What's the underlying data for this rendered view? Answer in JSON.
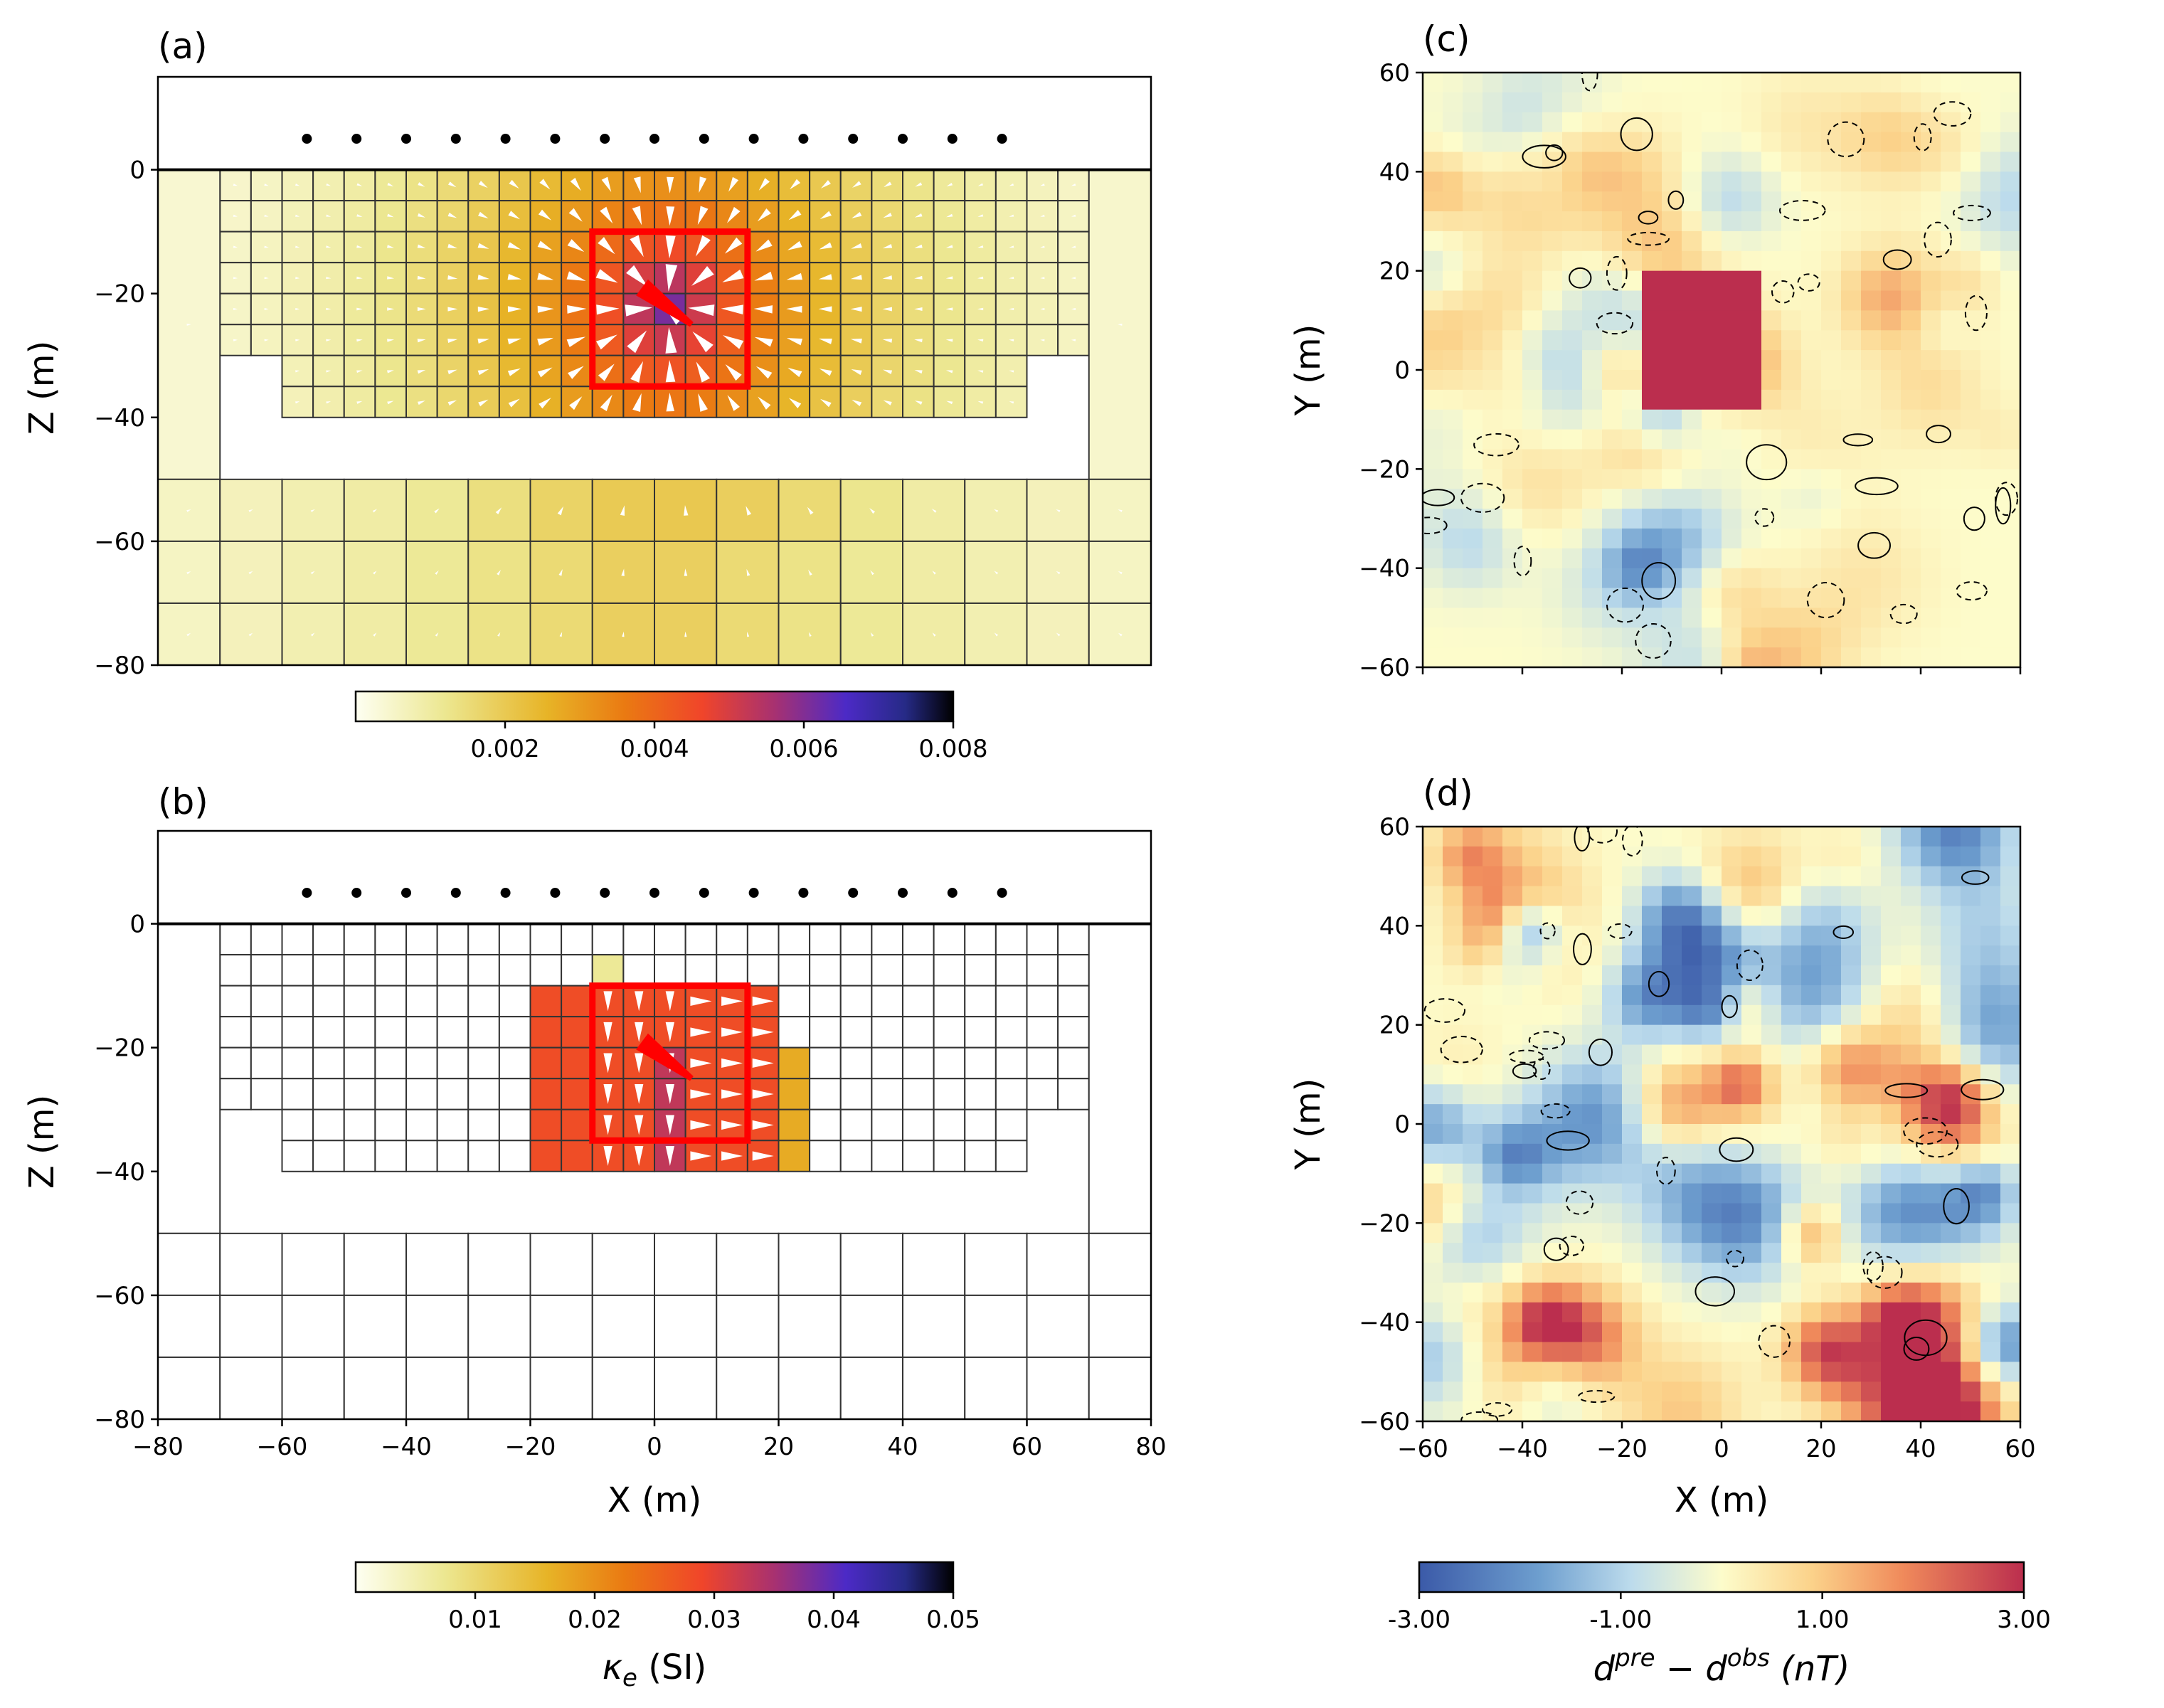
{
  "panels": {
    "a": "(a)",
    "b": "(b)",
    "c": "(c)",
    "d": "(d)"
  },
  "chart_data": [
    {
      "id": "a",
      "type": "heatmap",
      "title": "(a)",
      "xlabel": "",
      "ylabel": "Z (m)",
      "xlim": [
        -80,
        80
      ],
      "ylim": [
        -80,
        15
      ],
      "yticks": [
        0,
        -20,
        -40,
        -60,
        -80
      ],
      "yticklabels": [
        "0",
        "−20",
        "−40",
        "−60",
        "−80"
      ],
      "stations_x": [
        -56,
        -48,
        -40,
        -32,
        -24,
        -16,
        -8,
        0,
        8,
        16,
        24,
        32,
        40,
        48,
        56
      ],
      "stations_z": 5,
      "target_box": {
        "x": [
          -10,
          15
        ],
        "z": [
          -35,
          -10
        ]
      },
      "dipole": {
        "x0": 6,
        "z0": -25,
        "x1": -2,
        "z1": -19
      },
      "colorbar": {
        "range": [
          0,
          0.008
        ],
        "ticks": [
          0.002,
          0.004,
          0.006,
          0.008
        ],
        "ticklabels": [
          "0.002",
          "0.004",
          "0.006",
          "0.008"
        ]
      },
      "value_units": "kappa_e (SI)"
    },
    {
      "id": "b",
      "type": "heatmap",
      "title": "(b)",
      "xlabel": "X (m)",
      "ylabel": "Z (m)",
      "xlim": [
        -80,
        80
      ],
      "ylim": [
        -80,
        15
      ],
      "xticks": [
        -80,
        -60,
        -40,
        -20,
        0,
        20,
        40,
        60,
        80
      ],
      "xticklabels": [
        "−80",
        "−60",
        "−40",
        "−20",
        "0",
        "20",
        "40",
        "60",
        "80"
      ],
      "yticks": [
        0,
        -20,
        -40,
        -60,
        -80
      ],
      "yticklabels": [
        "0",
        "−20",
        "−40",
        "−60",
        "−80"
      ],
      "stations_x": [
        -56,
        -48,
        -40,
        -32,
        -24,
        -16,
        -8,
        0,
        8,
        16,
        24,
        32,
        40,
        48,
        56
      ],
      "stations_z": 5,
      "target_box": {
        "x": [
          -10,
          15
        ],
        "z": [
          -35,
          -10
        ]
      },
      "dipole": {
        "x0": 6,
        "z0": -25,
        "x1": -2,
        "z1": -19
      },
      "colorbar": {
        "range": [
          0,
          0.05
        ],
        "ticks": [
          0.01,
          0.02,
          0.03,
          0.04,
          0.05
        ],
        "ticklabels": [
          "0.01",
          "0.02",
          "0.03",
          "0.04",
          "0.05"
        ],
        "label": "κ",
        "label_sub": "e",
        "label_rest": " (SI)"
      }
    },
    {
      "id": "c",
      "type": "heatmap",
      "title": "(c)",
      "xlabel": "",
      "ylabel": "Y (m)",
      "xlim": [
        -60,
        60
      ],
      "ylim": [
        -60,
        60
      ],
      "yticks": [
        60,
        40,
        20,
        0,
        -20,
        -40,
        -60
      ],
      "yticklabels": [
        "60",
        "40",
        "20",
        "0",
        "−20",
        "−40",
        "−60"
      ],
      "anomaly": {
        "x": [
          -18,
          10
        ],
        "y": [
          -10,
          20
        ],
        "value": 3.0
      }
    },
    {
      "id": "d",
      "type": "heatmap",
      "title": "(d)",
      "xlabel": "X (m)",
      "ylabel": "Y (m)",
      "xlim": [
        -60,
        60
      ],
      "ylim": [
        -60,
        60
      ],
      "xticks": [
        -60,
        -40,
        -20,
        0,
        20,
        40,
        60
      ],
      "xticklabels": [
        "−60",
        "−40",
        "−20",
        "0",
        "20",
        "40",
        "60"
      ],
      "yticks": [
        60,
        40,
        20,
        0,
        -20,
        -40,
        -60
      ],
      "yticklabels": [
        "60",
        "40",
        "20",
        "0",
        "−20",
        "−40",
        "−60"
      ],
      "colorbar": {
        "range": [
          -3,
          3
        ],
        "ticks": [
          -3,
          -1,
          1,
          3
        ],
        "ticklabels": [
          "-3.00",
          "-1.00",
          "1.00",
          "3.00"
        ]
      }
    }
  ],
  "labels": {
    "ylabel_z": "Z (m)",
    "ylabel_y": "Y (m)",
    "xlabel_x": "X (m)",
    "kappa": "κ",
    "kappa_sub": "e",
    "kappa_rest": " (SI)",
    "d": "d",
    "pre": "pre",
    "minus": " − ",
    "obs": "obs",
    "nT": "(nT)"
  },
  "colors": {
    "target": "#ff0000",
    "grid": "#333333",
    "station": "#000000"
  }
}
